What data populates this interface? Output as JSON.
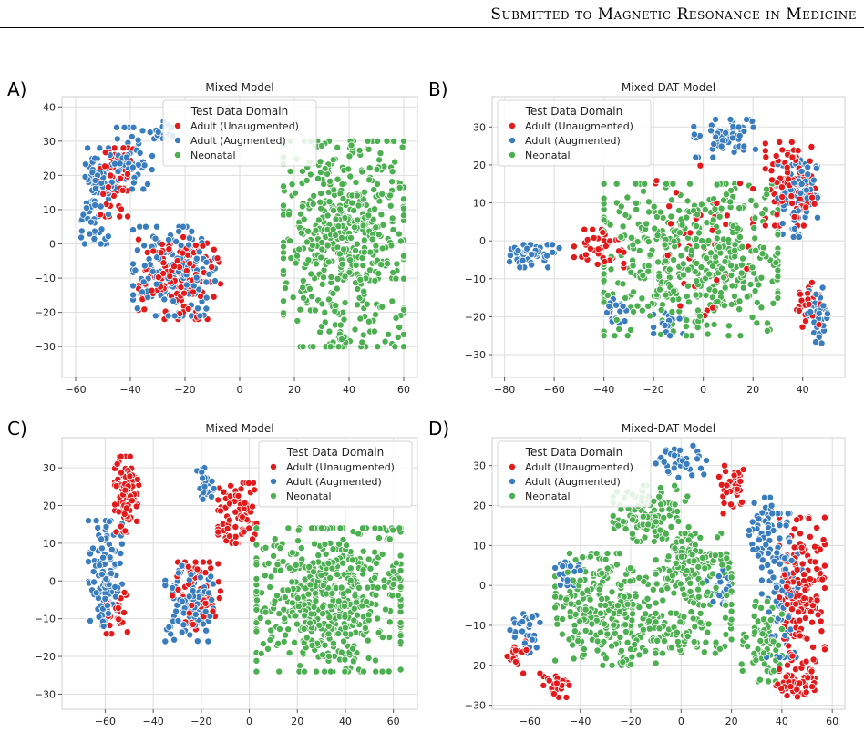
{
  "header": {
    "running_title": "Submitted to Magnetic Resonance in Medicine"
  },
  "legend_colors": {
    "Adult (Unaugmented)": "#e31a1c",
    "Adult (Augmented)": "#3a7dbe",
    "Neonatal": "#4caf50"
  },
  "chart_data": [
    {
      "type": "scatter",
      "panel_label": "A)",
      "title": "Mixed Model",
      "xlim": [
        -65,
        65
      ],
      "ylim": [
        -39,
        43
      ],
      "xticks": [
        -60,
        -40,
        -20,
        0,
        20,
        40,
        60
      ],
      "yticks": [
        -30,
        -20,
        -10,
        0,
        10,
        20,
        30,
        40
      ],
      "grid": true,
      "legend": {
        "title": "Test Data Domain",
        "placement": "top-center",
        "entries": [
          "Adult (Unaugmented)",
          "Adult (Augmented)",
          "Neonatal"
        ]
      },
      "clusters": [
        {
          "series": "Adult (Augmented)",
          "cx": -53,
          "cy": 14,
          "rx": 5,
          "ry": 14,
          "n": 90
        },
        {
          "series": "Adult (Augmented)",
          "cx": -40,
          "cy": 25,
          "rx": 8,
          "ry": 9,
          "n": 60
        },
        {
          "series": "Adult (Unaugmented)",
          "cx": -45,
          "cy": 18,
          "rx": 6,
          "ry": 10,
          "n": 55
        },
        {
          "series": "Adult (Augmented)",
          "cx": -28,
          "cy": 33,
          "rx": 5,
          "ry": 3,
          "n": 15
        },
        {
          "series": "Adult (Unaugmented)",
          "cx": -22,
          "cy": -10,
          "rx": 15,
          "ry": 12,
          "n": 140
        },
        {
          "series": "Adult (Augmented)",
          "cx": -24,
          "cy": -8,
          "rx": 15,
          "ry": 13,
          "n": 160
        },
        {
          "series": "Neonatal",
          "cx": 38,
          "cy": 0,
          "rx": 22,
          "ry": 30,
          "n": 520
        }
      ],
      "seed": 11
    },
    {
      "type": "scatter",
      "panel_label": "B)",
      "title": "Mixed-DAT Model",
      "xlim": [
        -85,
        57
      ],
      "ylim": [
        -36,
        38
      ],
      "xticks": [
        -80,
        -60,
        -40,
        -20,
        0,
        20,
        40
      ],
      "yticks": [
        -30,
        -20,
        -10,
        0,
        10,
        20,
        30
      ],
      "grid": true,
      "legend": {
        "title": "Test Data Domain",
        "placement": "top-left",
        "entries": [
          "Adult (Unaugmented)",
          "Adult (Augmented)",
          "Neonatal"
        ]
      },
      "clusters": [
        {
          "series": "Adult (Augmented)",
          "cx": -68,
          "cy": -4,
          "rx": 10,
          "ry": 3,
          "n": 45
        },
        {
          "series": "Adult (Unaugmented)",
          "cx": -42,
          "cy": -2,
          "rx": 10,
          "ry": 5,
          "n": 40
        },
        {
          "series": "Adult (Augmented)",
          "cx": -36,
          "cy": -18,
          "rx": 5,
          "ry": 4,
          "n": 20
        },
        {
          "series": "Adult (Augmented)",
          "cx": -14,
          "cy": -22,
          "rx": 6,
          "ry": 3,
          "n": 20
        },
        {
          "series": "Neonatal",
          "cx": -5,
          "cy": -5,
          "rx": 35,
          "ry": 20,
          "n": 480
        },
        {
          "series": "Adult (Unaugmented)",
          "cx": 0,
          "cy": 0,
          "rx": 20,
          "ry": 20,
          "n": 40
        },
        {
          "series": "Adult (Augmented)",
          "cx": 8,
          "cy": 27,
          "rx": 13,
          "ry": 5,
          "n": 60
        },
        {
          "series": "Adult (Unaugmented)",
          "cx": 35,
          "cy": 15,
          "rx": 10,
          "ry": 11,
          "n": 90
        },
        {
          "series": "Adult (Augmented)",
          "cx": 38,
          "cy": 12,
          "rx": 8,
          "ry": 11,
          "n": 90
        },
        {
          "series": "Adult (Augmented)",
          "cx": 46,
          "cy": -19,
          "rx": 4,
          "ry": 8,
          "n": 40
        },
        {
          "series": "Adult (Unaugmented)",
          "cx": 42,
          "cy": -17,
          "rx": 5,
          "ry": 6,
          "n": 25
        }
      ],
      "seed": 23
    },
    {
      "type": "scatter",
      "panel_label": "C)",
      "title": "Mixed Model",
      "xlim": [
        -78,
        70
      ],
      "ylim": [
        -34,
        38
      ],
      "xticks": [
        -60,
        -40,
        -20,
        0,
        20,
        40,
        60
      ],
      "yticks": [
        -30,
        -20,
        -10,
        0,
        10,
        20,
        30
      ],
      "grid": true,
      "legend": {
        "title": "Test Data Domain",
        "placement": "top-right",
        "entries": [
          "Adult (Unaugmented)",
          "Adult (Augmented)",
          "Neonatal"
        ]
      },
      "clusters": [
        {
          "series": "Adult (Unaugmented)",
          "cx": -51,
          "cy": 23,
          "rx": 5,
          "ry": 10,
          "n": 90
        },
        {
          "series": "Adult (Augmented)",
          "cx": -60,
          "cy": 2,
          "rx": 7,
          "ry": 14,
          "n": 110
        },
        {
          "series": "Adult (Unaugmented)",
          "cx": -55,
          "cy": -8,
          "rx": 5,
          "ry": 6,
          "n": 25
        },
        {
          "series": "Adult (Augmented)",
          "cx": -18,
          "cy": 25,
          "rx": 4,
          "ry": 5,
          "n": 30
        },
        {
          "series": "Adult (Unaugmented)",
          "cx": -5,
          "cy": 18,
          "rx": 8,
          "ry": 8,
          "n": 80
        },
        {
          "series": "Adult (Augmented)",
          "cx": -25,
          "cy": -6,
          "rx": 10,
          "ry": 10,
          "n": 110
        },
        {
          "series": "Adult (Unaugmented)",
          "cx": -22,
          "cy": -5,
          "rx": 10,
          "ry": 10,
          "n": 70
        },
        {
          "series": "Neonatal",
          "cx": 33,
          "cy": -5,
          "rx": 30,
          "ry": 19,
          "n": 560
        }
      ],
      "seed": 37
    },
    {
      "type": "scatter",
      "panel_label": "D)",
      "title": "Mixed-DAT Model",
      "xlim": [
        -75,
        65
      ],
      "ylim": [
        -31,
        37
      ],
      "xticks": [
        -60,
        -40,
        -20,
        0,
        20,
        40,
        60
      ],
      "yticks": [
        -30,
        -20,
        -10,
        0,
        10,
        20,
        30
      ],
      "grid": true,
      "legend": {
        "title": "Test Data Domain",
        "placement": "top-left",
        "entries": [
          "Adult (Unaugmented)",
          "Adult (Augmented)",
          "Neonatal"
        ]
      },
      "clusters": [
        {
          "series": "Adult (Augmented)",
          "cx": -62,
          "cy": -10,
          "rx": 6,
          "ry": 7,
          "n": 30
        },
        {
          "series": "Adult (Unaugmented)",
          "cx": -65,
          "cy": -18,
          "rx": 4,
          "ry": 4,
          "n": 18
        },
        {
          "series": "Adult (Unaugmented)",
          "cx": -50,
          "cy": -25,
          "rx": 6,
          "ry": 3,
          "n": 25
        },
        {
          "series": "Adult (Augmented)",
          "cx": -45,
          "cy": 4,
          "rx": 5,
          "ry": 4,
          "n": 22
        },
        {
          "series": "Neonatal",
          "cx": -30,
          "cy": -6,
          "rx": 20,
          "ry": 14,
          "n": 260
        },
        {
          "series": "Neonatal",
          "cx": -12,
          "cy": 18,
          "rx": 15,
          "ry": 7,
          "n": 120
        },
        {
          "series": "Neonatal",
          "cx": 5,
          "cy": 3,
          "rx": 15,
          "ry": 10,
          "n": 150
        },
        {
          "series": "Neonatal",
          "cx": 0,
          "cy": -12,
          "rx": 20,
          "ry": 5,
          "n": 90
        },
        {
          "series": "Neonatal",
          "cx": 32,
          "cy": -14,
          "rx": 8,
          "ry": 10,
          "n": 70
        },
        {
          "series": "Adult (Augmented)",
          "cx": 0,
          "cy": 31,
          "rx": 10,
          "ry": 4,
          "n": 40
        },
        {
          "series": "Adult (Unaugmented)",
          "cx": 20,
          "cy": 24,
          "rx": 5,
          "ry": 6,
          "n": 40
        },
        {
          "series": "Adult (Augmented)",
          "cx": 33,
          "cy": 14,
          "rx": 6,
          "ry": 8,
          "n": 40
        },
        {
          "series": "Adult (Unaugmented)",
          "cx": 48,
          "cy": -3,
          "rx": 9,
          "ry": 20,
          "n": 160
        },
        {
          "series": "Adult (Augmented)",
          "cx": 40,
          "cy": 0,
          "rx": 8,
          "ry": 18,
          "n": 100
        },
        {
          "series": "Adult (Unaugmented)",
          "cx": 45,
          "cy": -25,
          "rx": 8,
          "ry": 3,
          "n": 40
        },
        {
          "series": "Adult (Augmented)",
          "cx": 15,
          "cy": 0,
          "rx": 5,
          "ry": 5,
          "n": 20
        }
      ],
      "seed": 53
    }
  ]
}
